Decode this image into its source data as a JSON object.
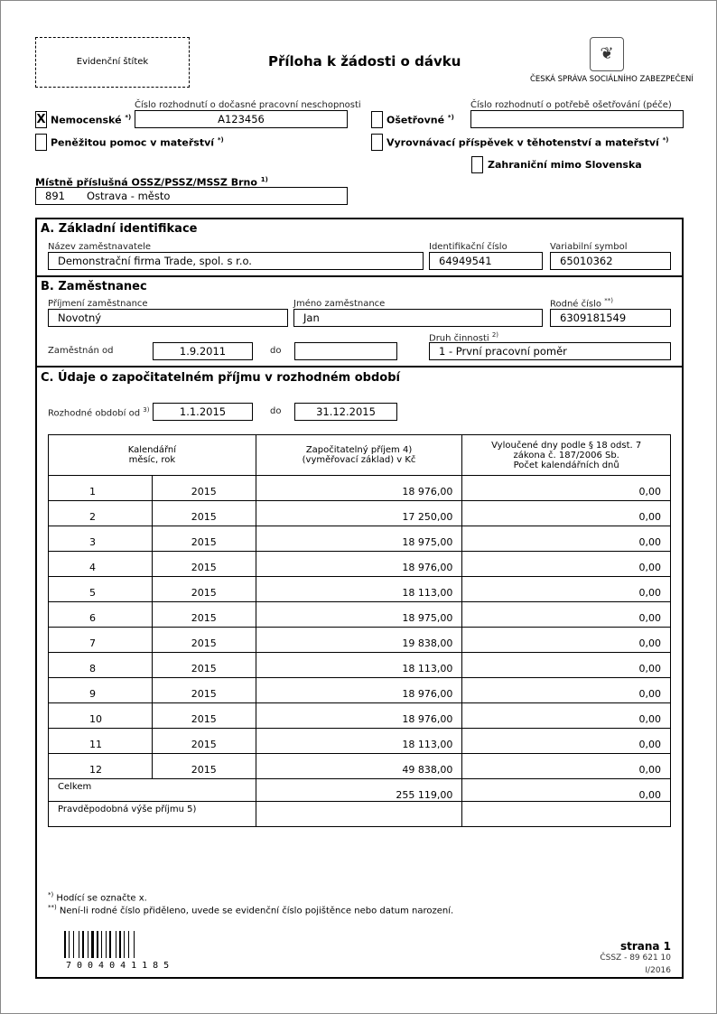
{
  "header": {
    "label_stamp": "Evidenční štítek",
    "title": "Příloha k žádosti o dávku",
    "org": "ČESKÁ SPRÁVA SOCIÁLNÍHO ZABEZPEČENÍ"
  },
  "benefits": {
    "nemocenske": {
      "label": "Nemocenské",
      "sup": "*)",
      "checked": "X"
    },
    "nemocenske_no_label": "Číslo rozhodnutí o dočasné pracovní neschopnosti",
    "nemocenske_no": "A123456",
    "osetrovne": {
      "label": "Ošetřovné",
      "sup": "*)"
    },
    "osetrovne_no_label": "Číslo rozhodnutí o potřebě ošetřování (péče)",
    "osetrovne_no": "",
    "penezita": {
      "label": "Peněžitou pomoc v mateřství",
      "sup": "*)"
    },
    "vyrovnavaci": {
      "label": "Vyrovnávací příspěvek v těhotenství a mateřství",
      "sup": "*)"
    },
    "zahranicni": {
      "label": "Zahraniční mimo Slovenska"
    }
  },
  "office": {
    "label": "Místně příslušná OSSZ/PSSZ/MSSZ Brno",
    "sup": "1)",
    "code": "891",
    "name": "Ostrava - město"
  },
  "sectionA": {
    "title": "A. Základní identifikace",
    "employer_label": "Název zaměstnavatele",
    "employer": "Demonstrační firma Trade, spol. s r.o.",
    "id_label": "Identifikační číslo",
    "id": "64949541",
    "vs_label": "Variabilní symbol",
    "vs": "65010362"
  },
  "sectionB": {
    "title": "B. Zaměstnanec",
    "surname_label": "Příjmení zaměstnance",
    "surname": "Novotný",
    "name_label": "Jméno zaměstnance",
    "name": "Jan",
    "rc_label": "Rodné číslo",
    "rc_sup": "**)",
    "rc": "6309181549",
    "from_label": "Zaměstnán od",
    "from": "1.9.2011",
    "to_label": "do",
    "to": "",
    "activity_label": "Druh činnosti",
    "activity_sup": "2)",
    "activity": "1 - První pracovní poměr"
  },
  "sectionC": {
    "title": "C. Údaje o započitatelném příjmu v rozhodném období",
    "period_label": "Rozhodné období od",
    "period_sup": "3)",
    "from": "1.1.2015",
    "to_label": "do",
    "to": "31.12.2015",
    "col1": "Kalendářní\nměsíc, rok",
    "col2": "Započitatelný příjem 4)\n(vyměřovací základ) v Kč",
    "col3": "Vyloučené dny podle § 18 odst. 7\nzákona č. 187/2006 Sb.\nPočet kalendářních dnů",
    "rows": [
      {
        "m": "1",
        "y": "2015",
        "inc": "18 976,00",
        "d": "0,00"
      },
      {
        "m": "2",
        "y": "2015",
        "inc": "17 250,00",
        "d": "0,00"
      },
      {
        "m": "3",
        "y": "2015",
        "inc": "18 975,00",
        "d": "0,00"
      },
      {
        "m": "4",
        "y": "2015",
        "inc": "18 976,00",
        "d": "0,00"
      },
      {
        "m": "5",
        "y": "2015",
        "inc": "18 113,00",
        "d": "0,00"
      },
      {
        "m": "6",
        "y": "2015",
        "inc": "18 975,00",
        "d": "0,00"
      },
      {
        "m": "7",
        "y": "2015",
        "inc": "19 838,00",
        "d": "0,00"
      },
      {
        "m": "8",
        "y": "2015",
        "inc": "18 113,00",
        "d": "0,00"
      },
      {
        "m": "9",
        "y": "2015",
        "inc": "18 976,00",
        "d": "0,00"
      },
      {
        "m": "10",
        "y": "2015",
        "inc": "18 976,00",
        "d": "0,00"
      },
      {
        "m": "11",
        "y": "2015",
        "inc": "18 113,00",
        "d": "0,00"
      },
      {
        "m": "12",
        "y": "2015",
        "inc": "49 838,00",
        "d": "0,00"
      }
    ],
    "total_label": "Celkem",
    "total_inc": "255 119,00",
    "total_d": "0,00",
    "probable_label": "Pravděpodobná výše příjmu 5)",
    "probable": ""
  },
  "footnotes": {
    "n1_mark": "*)",
    "n1": "Hodící se označte x.",
    "n2_mark": "**)",
    "n2": "Není-li rodné číslo přiděleno, uvede se evidenční číslo pojištěnce nebo datum narození."
  },
  "footer": {
    "barcode": "7004041185",
    "page": "strana 1",
    "form_code": "ČSSZ - 89 621 10",
    "version": "I/2016"
  }
}
